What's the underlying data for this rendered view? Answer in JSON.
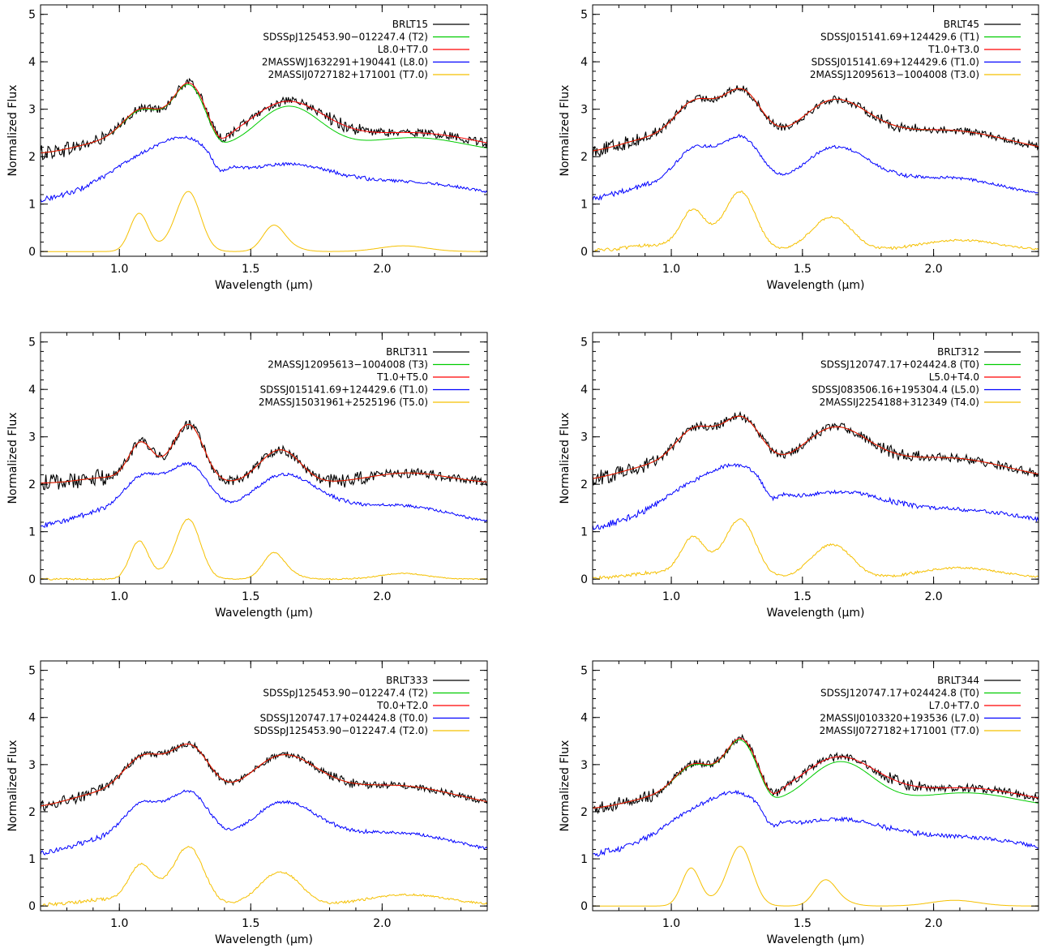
{
  "chart_data": [
    {
      "type": "line",
      "xlabel": "Wavelength (μm)",
      "ylabel": "Normalized Flux",
      "xlim": [
        0.7,
        2.4
      ],
      "ylim": [
        -0.1,
        5.2
      ],
      "xticks": [
        1.0,
        1.5,
        2.0
      ],
      "xtick_labels": [
        "1.0",
        "1.5",
        "2.0"
      ],
      "yticks": [
        0,
        1,
        2,
        3,
        4,
        5
      ],
      "ytick_labels": [
        "0",
        "1",
        "2",
        "3",
        "4",
        "5"
      ],
      "legend_position": "top-right",
      "series": [
        {
          "name": "BRLT15",
          "color": "#000000",
          "offset": 2.0,
          "shape": "T-mix",
          "noise": 0.09
        },
        {
          "name": "SDSSpJ125453.90−012247.4 (T2)",
          "color": "#00cc00",
          "offset": 2.0,
          "shape": "T-mix-low",
          "noise": 0.0
        },
        {
          "name": "L8.0+T7.0",
          "color": "#ff0000",
          "offset": 2.0,
          "shape": "T-mix",
          "noise": 0.0
        },
        {
          "name": "2MASSWJ1632291+190441 (L8.0)",
          "color": "#0000ff",
          "offset": 1.0,
          "shape": "L",
          "noise": 0.03
        },
        {
          "name": "2MASSIJ0727182+171001 (T7.0)",
          "color": "#f5c000",
          "offset": 0.0,
          "shape": "T-late",
          "noise": 0.0
        }
      ]
    },
    {
      "type": "line",
      "xlabel": "Wavelength (μm)",
      "ylabel": "Normalized Flux",
      "xlim": [
        0.7,
        2.4
      ],
      "ylim": [
        -0.1,
        5.2
      ],
      "xticks": [
        1.0,
        1.5,
        2.0
      ],
      "xtick_labels": [
        "1.0",
        "1.5",
        "2.0"
      ],
      "yticks": [
        0,
        1,
        2,
        3,
        4,
        5
      ],
      "ytick_labels": [
        "0",
        "1",
        "2",
        "3",
        "4",
        "5"
      ],
      "legend_position": "top-right",
      "series": [
        {
          "name": "BRLT45",
          "color": "#000000",
          "offset": 2.0,
          "shape": "T-early",
          "noise": 0.08
        },
        {
          "name": "SDSSJ015141.69+124429.6 (T1)",
          "color": "#00cc00",
          "offset": 2.0,
          "shape": "T-early",
          "noise": 0.0
        },
        {
          "name": "T1.0+T3.0",
          "color": "#ff0000",
          "offset": 2.0,
          "shape": "T-early",
          "noise": 0.0
        },
        {
          "name": "SDSSJ015141.69+124429.6 (T1.0)",
          "color": "#0000ff",
          "offset": 1.0,
          "shape": "T-early",
          "noise": 0.03
        },
        {
          "name": "2MASSJ12095613−1004008 (T3.0)",
          "color": "#f5c000",
          "offset": 0.0,
          "shape": "T-mid",
          "noise": 0.02
        }
      ]
    },
    {
      "type": "line",
      "xlabel": "Wavelength (μm)",
      "ylabel": "Normalized Flux",
      "xlim": [
        0.7,
        2.4
      ],
      "ylim": [
        -0.1,
        5.2
      ],
      "xticks": [
        1.0,
        1.5,
        2.0
      ],
      "xtick_labels": [
        "1.0",
        "1.5",
        "2.0"
      ],
      "yticks": [
        0,
        1,
        2,
        3,
        4,
        5
      ],
      "ytick_labels": [
        "0",
        "1",
        "2",
        "3",
        "4",
        "5"
      ],
      "legend_position": "top-right",
      "series": [
        {
          "name": "BRLT311",
          "color": "#000000",
          "offset": 2.0,
          "shape": "T-mid",
          "noise": 0.1
        },
        {
          "name": "2MASSJ12095613−1004008 (T3)",
          "color": "#00cc00",
          "offset": 2.0,
          "shape": "T-mid",
          "noise": 0.0
        },
        {
          "name": "T1.0+T5.0",
          "color": "#ff0000",
          "offset": 2.0,
          "shape": "T-mid",
          "noise": 0.0
        },
        {
          "name": "SDSSJ015141.69+124429.6 (T1.0)",
          "color": "#0000ff",
          "offset": 1.0,
          "shape": "T-early",
          "noise": 0.03
        },
        {
          "name": "2MASSJ15031961+2525196 (T5.0)",
          "color": "#f5c000",
          "offset": 0.0,
          "shape": "T-late",
          "noise": 0.01
        }
      ]
    },
    {
      "type": "line",
      "xlabel": "Wavelength (μm)",
      "ylabel": "Normalized Flux",
      "xlim": [
        0.7,
        2.4
      ],
      "ylim": [
        -0.1,
        5.2
      ],
      "xticks": [
        1.0,
        1.5,
        2.0
      ],
      "xtick_labels": [
        "1.0",
        "1.5",
        "2.0"
      ],
      "yticks": [
        0,
        1,
        2,
        3,
        4,
        5
      ],
      "ytick_labels": [
        "0",
        "1",
        "2",
        "3",
        "4",
        "5"
      ],
      "legend_position": "top-right",
      "series": [
        {
          "name": "BRLT312",
          "color": "#000000",
          "offset": 2.0,
          "shape": "T-early",
          "noise": 0.09
        },
        {
          "name": "SDSSJ120747.17+024424.8 (T0)",
          "color": "#00cc00",
          "offset": 2.0,
          "shape": "T-early",
          "noise": 0.0
        },
        {
          "name": "L5.0+T4.0",
          "color": "#ff0000",
          "offset": 2.0,
          "shape": "T-early",
          "noise": 0.0
        },
        {
          "name": "SDSSJ083506.16+195304.4 (L5.0)",
          "color": "#0000ff",
          "offset": 1.0,
          "shape": "L",
          "noise": 0.04
        },
        {
          "name": "2MASSIJ2254188+312349 (T4.0)",
          "color": "#f5c000",
          "offset": 0.0,
          "shape": "T-mid",
          "noise": 0.02
        }
      ]
    },
    {
      "type": "line",
      "xlabel": "Wavelength (μm)",
      "ylabel": "Normalized Flux",
      "xlim": [
        0.7,
        2.4
      ],
      "ylim": [
        -0.1,
        5.2
      ],
      "xticks": [
        1.0,
        1.5,
        2.0
      ],
      "xtick_labels": [
        "1.0",
        "1.5",
        "2.0"
      ],
      "yticks": [
        0,
        1,
        2,
        3,
        4,
        5
      ],
      "ytick_labels": [
        "0",
        "1",
        "2",
        "3",
        "4",
        "5"
      ],
      "legend_position": "top-right",
      "series": [
        {
          "name": "BRLT333",
          "color": "#000000",
          "offset": 2.0,
          "shape": "T-early",
          "noise": 0.07
        },
        {
          "name": "SDSSpJ125453.90−012247.4 (T2)",
          "color": "#00cc00",
          "offset": 2.0,
          "shape": "T-early",
          "noise": 0.0
        },
        {
          "name": "T0.0+T2.0",
          "color": "#ff0000",
          "offset": 2.0,
          "shape": "T-early",
          "noise": 0.0
        },
        {
          "name": "SDSSJ120747.17+024424.8 (T0.0)",
          "color": "#0000ff",
          "offset": 1.0,
          "shape": "T-early",
          "noise": 0.03
        },
        {
          "name": "SDSSpJ125453.90−012247.4 (T2.0)",
          "color": "#f5c000",
          "offset": 0.0,
          "shape": "T-mid",
          "noise": 0.02
        }
      ]
    },
    {
      "type": "line",
      "xlabel": "Wavelength (μm)",
      "ylabel": "Normalized Flux",
      "xlim": [
        0.7,
        2.4
      ],
      "ylim": [
        -0.1,
        5.2
      ],
      "xticks": [
        1.0,
        1.5,
        2.0
      ],
      "xtick_labels": [
        "1.0",
        "1.5",
        "2.0"
      ],
      "yticks": [
        0,
        1,
        2,
        3,
        4,
        5
      ],
      "ytick_labels": [
        "0",
        "1",
        "2",
        "3",
        "4",
        "5"
      ],
      "legend_position": "top-right",
      "series": [
        {
          "name": "BRLT344",
          "color": "#000000",
          "offset": 2.0,
          "shape": "T-mix",
          "noise": 0.08
        },
        {
          "name": "SDSSJ120747.17+024424.8 (T0)",
          "color": "#00cc00",
          "offset": 2.0,
          "shape": "T-mix-low",
          "noise": 0.0
        },
        {
          "name": "L7.0+T7.0",
          "color": "#ff0000",
          "offset": 2.0,
          "shape": "T-mix",
          "noise": 0.0
        },
        {
          "name": "2MASSIJ0103320+193536 (L7.0)",
          "color": "#0000ff",
          "offset": 1.0,
          "shape": "L",
          "noise": 0.04
        },
        {
          "name": "2MASSIJ0727182+171001 (T7.0)",
          "color": "#f5c000",
          "offset": 0.0,
          "shape": "T-late",
          "noise": 0.0
        }
      ]
    }
  ]
}
